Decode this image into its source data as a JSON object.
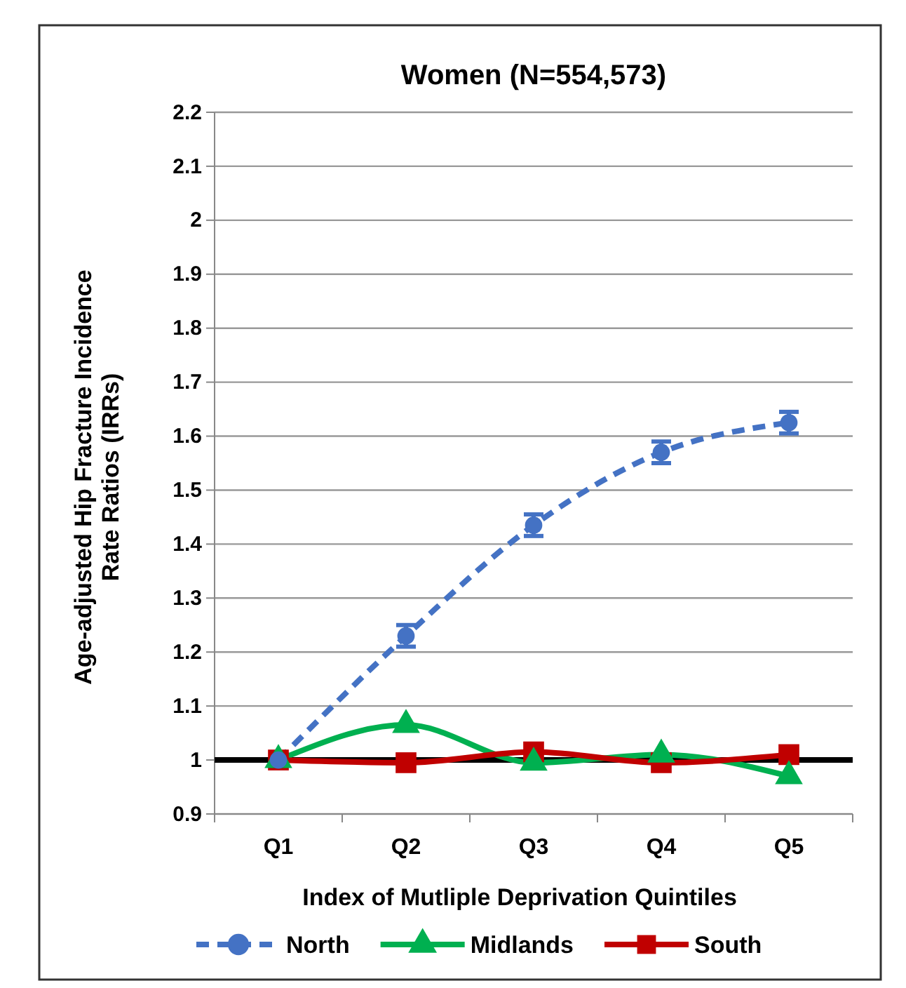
{
  "chart_data": {
    "type": "line",
    "title": "Women (N=554,573)",
    "xlabel": "Index of Mutliple Deprivation Quintiles",
    "ylabel": "Age-adjusted Hip Fracture Incidence Rate Ratios (IRRs)",
    "categories": [
      "Q1",
      "Q2",
      "Q3",
      "Q4",
      "Q5"
    ],
    "series": [
      {
        "name": "North",
        "color": "#4472c4",
        "values": [
          1.0,
          1.23,
          1.435,
          1.57,
          1.625
        ],
        "errors": [
          null,
          0.02,
          0.02,
          0.02,
          0.02
        ],
        "marker": "circle",
        "line_style": "dashed"
      },
      {
        "name": "Midlands",
        "color": "#00b050",
        "values": [
          1.0,
          1.065,
          0.995,
          1.01,
          0.97
        ],
        "marker": "triangle",
        "line_style": "solid"
      },
      {
        "name": "South",
        "color": "#c00000",
        "values": [
          1.0,
          0.995,
          1.015,
          0.995,
          1.01
        ],
        "marker": "square",
        "line_style": "solid"
      }
    ],
    "ylim": [
      0.9,
      2.2
    ],
    "yticks": [
      0.9,
      1,
      1.1,
      1.2,
      1.3,
      1.4,
      1.5,
      1.6,
      1.7,
      1.8,
      1.9,
      2,
      2.1,
      2.2
    ],
    "grid": "y",
    "legend": "bottom",
    "ref_lines": [
      {
        "axis": "y",
        "value": 1,
        "color": "#000000"
      }
    ]
  }
}
